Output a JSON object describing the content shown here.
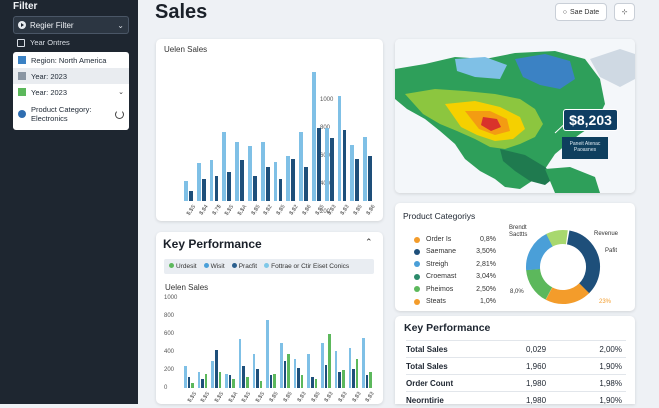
{
  "sidebar": {
    "title": "Filter",
    "dropdown_label": "Regier Filter",
    "checkbox_label": "Year Ontres",
    "filters": [
      {
        "label": "Region: North America",
        "color": "#3b82c4",
        "chevron": false
      },
      {
        "label": "Year: 2023",
        "color": "#8a96a3",
        "chevron": false
      },
      {
        "label": "Year: 2023",
        "color": "#5cb85c",
        "chevron": true
      }
    ],
    "category_label": "Product Category: Electronics",
    "category_color": "#2f6db0"
  },
  "header": {
    "title": "Sales",
    "button_label": "Sae Date"
  },
  "top_chart": {
    "title": "Uelen Sales",
    "y_ticks": [
      "1000",
      "800",
      "600",
      "400",
      "200",
      "0"
    ]
  },
  "map": {
    "tooltip_value": "$8,203",
    "tooltip_caption": "Paneit Atenac Paoasnes"
  },
  "key_performance": {
    "title": "Key Performance",
    "legend": [
      {
        "label": "Urdesit",
        "color": "#5cb85c"
      },
      {
        "label": "Wisit",
        "color": "#4a9fd8"
      },
      {
        "label": "Pracfit",
        "color": "#2b5f8e"
      },
      {
        "label": "Fottrae or Ctir Eiset Conics",
        "color": "#7fc8e8"
      }
    ],
    "chart_title": "Uelen Sales"
  },
  "product_category": {
    "title": "Product Categoriys",
    "rows": [
      {
        "label": "Order Is",
        "value": "0,8%",
        "color": "#f39c2b"
      },
      {
        "label": "Saemane",
        "value": "3,50%",
        "color": "#1e4f7a"
      },
      {
        "label": "Streigh",
        "value": "2,81%",
        "color": "#4a9fd8"
      },
      {
        "label": "Croemast",
        "value": "3,04%",
        "color": "#2b8a6a"
      },
      {
        "label": "Pheimos",
        "value": "2,50%",
        "color": "#5cb85c"
      },
      {
        "label": "Steats",
        "value": "1,0%",
        "color": "#f39c2b"
      }
    ],
    "donut_labels": {
      "top_left": "Brendt Sacttts",
      "right": "Revenue",
      "right2": "Pafit",
      "left": "8,0%",
      "bottom": "23%"
    }
  },
  "kp_table": {
    "title": "Key Performance",
    "rows": [
      {
        "name": "Total Sales",
        "v1": "0,029",
        "v2": "2,00%"
      },
      {
        "name": "Total Sales",
        "v1": "1,960",
        "v2": "1,90%"
      },
      {
        "name": "Order Count",
        "v1": "1,980",
        "v2": "1,98%"
      },
      {
        "name": "Neorntirie",
        "v1": "1,980",
        "v2": "1,90%"
      }
    ]
  },
  "chart_data": [
    {
      "type": "bar",
      "title": "Uelen Sales",
      "ylim": [
        0,
        1000
      ],
      "categories": [
        "$,$S",
        "$,$4",
        "$,7$",
        "$,$S",
        "$,$A",
        "$,$5",
        "$,$2",
        "$,$5",
        "$,$2",
        "$,$6",
        "$,$5",
        "$,$3",
        "$,$3",
        "$,$5",
        "$,$6"
      ],
      "series": [
        {
          "color": "#7fc0e6",
          "values": [
            140,
            270,
            290,
            490,
            420,
            390,
            420,
            280,
            320,
            490,
            920,
            520,
            750,
            400,
            460
          ]
        },
        {
          "color": "#1e4f7a",
          "values": [
            70,
            160,
            180,
            210,
            290,
            180,
            240,
            160,
            300,
            240,
            520,
            450,
            510,
            300,
            320
          ]
        }
      ]
    },
    {
      "type": "bar",
      "title": "Uelen Sales",
      "ylim": [
        0,
        1000
      ],
      "categories": [
        "$,$S",
        "$,$S",
        "$,$S",
        "$,$A",
        "$,$S",
        "$,$S",
        "$,$5",
        "$,$5",
        "$,$3",
        "$,$5",
        "$,$3",
        "$,$3",
        "$,$3",
        "$,$3"
      ],
      "series": [
        {
          "color": "#7fc0e6",
          "values": [
            250,
            180,
            300,
            160,
            540,
            380,
            760,
            500,
            320,
            380,
            500,
            410,
            440,
            560
          ]
        },
        {
          "color": "#1e4f7a",
          "values": [
            120,
            100,
            420,
            150,
            240,
            210,
            140,
            300,
            220,
            120,
            260,
            180,
            210,
            140
          ]
        },
        {
          "color": "#5cb85c",
          "values": [
            60,
            160,
            180,
            100,
            120,
            80,
            160,
            380,
            140,
            100,
            600,
            200,
            320,
            180
          ]
        }
      ]
    }
  ]
}
